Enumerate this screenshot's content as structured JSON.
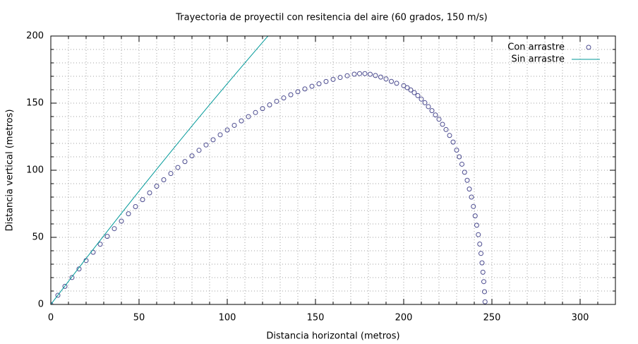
{
  "chart_data": {
    "type": "scatter",
    "title": "Trayectoria de proyectil con resitencia del aire (60 grados, 150 m/s)",
    "x_label": "Distancia horizontal (metros)",
    "y_label": "Distancia vertical (metros)",
    "xlim": [
      0,
      320
    ],
    "ylim": [
      0,
      200
    ],
    "xticks": [
      0,
      50,
      100,
      150,
      200,
      250,
      300
    ],
    "yticks": [
      0,
      50,
      100,
      150,
      200
    ],
    "minor_ticks": 5,
    "grid": true,
    "legend": "top-right",
    "series": [
      {
        "name": "Con arrastre",
        "type": "scatter",
        "color": "#4b4b8f",
        "x": [
          0,
          4,
          8,
          12,
          16,
          20,
          24,
          28,
          32,
          36,
          40,
          44,
          48,
          52,
          56,
          60,
          64,
          68,
          72,
          76,
          80,
          84,
          88,
          92,
          96,
          100,
          104,
          108,
          112,
          116,
          120,
          124,
          128,
          132,
          136,
          140,
          144,
          148,
          152,
          156,
          160,
          164,
          168,
          172,
          175,
          178,
          181,
          184,
          187,
          190,
          193,
          196,
          200,
          202,
          204,
          206,
          208,
          210,
          212,
          214,
          216,
          218,
          220,
          222,
          224,
          226,
          228,
          230,
          231.5,
          233,
          234.5,
          236,
          237.2,
          238.4,
          239.5,
          240.5,
          241.4,
          242.3,
          243.1,
          243.8,
          244.4,
          244.9,
          245.4,
          245.8,
          246.1
        ],
        "values": [
          0,
          6.81,
          13.49,
          20.04,
          26.44,
          32.72,
          38.86,
          44.87,
          50.74,
          56.48,
          62.08,
          67.55,
          72.88,
          78.08,
          83.15,
          88.08,
          92.88,
          97.54,
          102.07,
          106.46,
          110.72,
          114.84,
          118.84,
          122.69,
          126.41,
          130,
          133.45,
          136.77,
          139.96,
          143.0,
          145.92,
          148.7,
          151.35,
          153.86,
          156.24,
          158.48,
          160.59,
          162.56,
          164.4,
          166.11,
          167.68,
          169.12,
          170.42,
          171.59,
          172,
          172,
          171.5,
          170.6,
          169.4,
          168,
          166.2,
          164.8,
          163,
          161.5,
          159.8,
          157.8,
          155.6,
          153,
          150.3,
          147.4,
          144.4,
          141.2,
          138,
          134.2,
          130.3,
          125.9,
          121,
          115,
          110,
          104.5,
          98.5,
          92.5,
          86,
          80,
          73,
          66,
          59,
          52,
          45,
          38,
          31,
          24,
          17,
          9.5,
          2
        ]
      },
      {
        "name": "Sin arrastre",
        "type": "line",
        "color": "#009999",
        "x": [
          0,
          10,
          20,
          30,
          40,
          50,
          60,
          70,
          80,
          90,
          100,
          110,
          120,
          125
        ],
        "values": [
          0,
          17.23,
          34.29,
          51.18,
          67.89,
          84.42,
          100.78,
          116.97,
          132.99,
          148.82,
          164.49,
          179.99,
          195.31,
          202.9
        ]
      }
    ]
  }
}
